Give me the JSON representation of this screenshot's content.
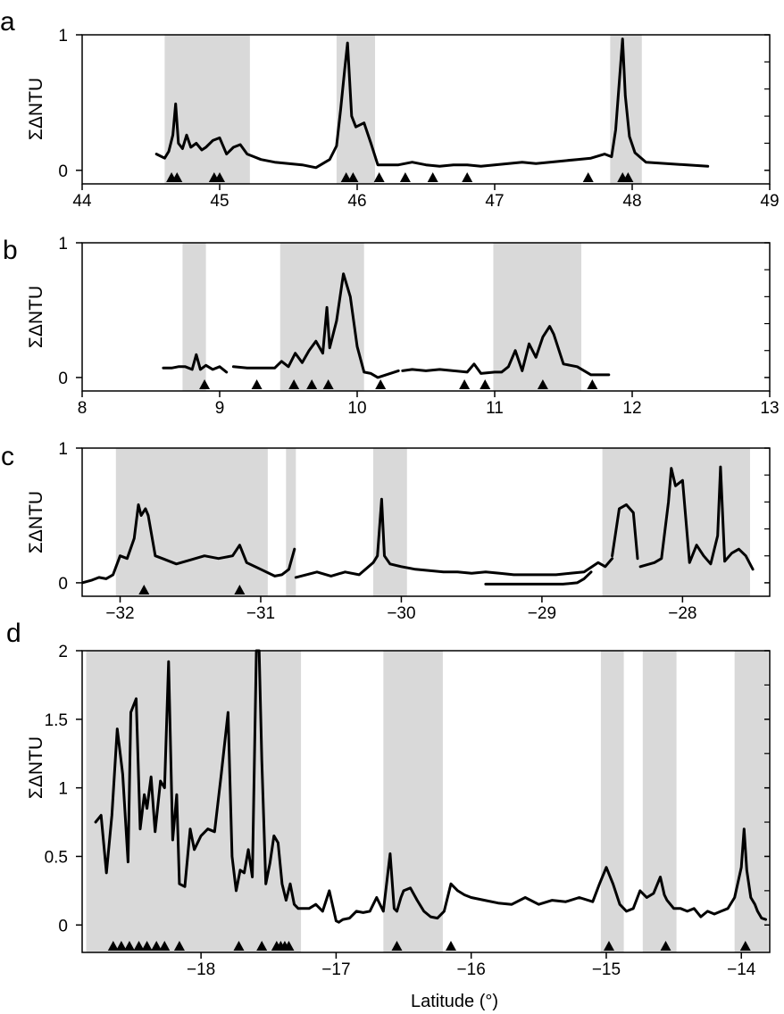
{
  "figure": {
    "xlabel": "Latitude (°)",
    "ylabel": "ΣΔNTU",
    "shade_color": "#d9d9d9",
    "line_color": "#000000"
  },
  "chart_data": [
    {
      "panel_label": "a",
      "type": "line",
      "xlim": [
        44,
        49
      ],
      "ylim": [
        -0.1,
        1
      ],
      "xticks": [
        44,
        45,
        46,
        47,
        48,
        49
      ],
      "yticks": [
        0,
        1
      ],
      "xtick_labels": [
        "44",
        "45",
        "46",
        "47",
        "48",
        "49"
      ],
      "ytick_labels": [
        "0",
        "1"
      ],
      "shaded_regions": [
        [
          44.6,
          45.22
        ],
        [
          45.85,
          46.13
        ],
        [
          47.84,
          48.07
        ]
      ],
      "series": [
        {
          "x": [
            44.54,
            44.6,
            44.63,
            44.66,
            44.68,
            44.7,
            44.73,
            44.76,
            44.79,
            44.83,
            44.87,
            44.9,
            44.95,
            45.0,
            45.05,
            45.1,
            45.15,
            45.2,
            45.25,
            45.3,
            45.4,
            45.5,
            45.6,
            45.7,
            45.8,
            45.85,
            45.88,
            45.91,
            45.93,
            45.96,
            45.99,
            46.05,
            46.1,
            46.15,
            46.3,
            46.4,
            46.5,
            46.6,
            46.7,
            46.8,
            46.9,
            47.0,
            47.1,
            47.2,
            47.3,
            47.4,
            47.5,
            47.6,
            47.7,
            47.8,
            47.85,
            47.88,
            47.91,
            47.93,
            47.95,
            47.98,
            48.02,
            48.1,
            48.55
          ],
          "y": [
            0.12,
            0.09,
            0.14,
            0.26,
            0.49,
            0.2,
            0.16,
            0.26,
            0.17,
            0.2,
            0.15,
            0.17,
            0.22,
            0.24,
            0.12,
            0.17,
            0.19,
            0.12,
            0.1,
            0.08,
            0.06,
            0.05,
            0.04,
            0.02,
            0.08,
            0.18,
            0.45,
            0.75,
            0.94,
            0.4,
            0.32,
            0.35,
            0.2,
            0.04,
            0.04,
            0.06,
            0.04,
            0.03,
            0.04,
            0.04,
            0.03,
            0.04,
            0.05,
            0.06,
            0.05,
            0.06,
            0.07,
            0.08,
            0.09,
            0.12,
            0.1,
            0.3,
            0.7,
            0.97,
            0.55,
            0.25,
            0.13,
            0.06,
            0.03
          ]
        }
      ],
      "triangles": [
        44.65,
        44.69,
        44.96,
        45.0,
        45.92,
        45.97,
        46.16,
        46.35,
        46.55,
        46.8,
        47.68,
        47.93,
        47.97
      ]
    },
    {
      "panel_label": "b",
      "type": "line",
      "xlim": [
        8,
        13
      ],
      "ylim": [
        -0.1,
        1
      ],
      "xticks": [
        8,
        9,
        10,
        11,
        12,
        13
      ],
      "yticks": [
        0,
        1
      ],
      "xtick_labels": [
        "8",
        "9",
        "10",
        "11",
        "12",
        "13"
      ],
      "ytick_labels": [
        "0",
        "1"
      ],
      "shaded_regions": [
        [
          8.73,
          8.9
        ],
        [
          9.44,
          10.05
        ],
        [
          10.99,
          11.63
        ]
      ],
      "series": [
        {
          "x": [
            8.59,
            8.65,
            8.7,
            8.75,
            8.8,
            8.83,
            8.86,
            8.9,
            8.95,
            9.0,
            9.05
          ],
          "y": [
            0.07,
            0.07,
            0.08,
            0.08,
            0.06,
            0.17,
            0.06,
            0.09,
            0.06,
            0.08,
            0.04
          ]
        },
        {
          "x": [
            9.1,
            9.2,
            9.3,
            9.4,
            9.45,
            9.5,
            9.55,
            9.6,
            9.65,
            9.7,
            9.75,
            9.78,
            9.8,
            9.85,
            9.9,
            9.95,
            10.0,
            10.05,
            10.1,
            10.15,
            10.3
          ],
          "y": [
            0.08,
            0.07,
            0.07,
            0.07,
            0.12,
            0.08,
            0.18,
            0.11,
            0.2,
            0.27,
            0.18,
            0.52,
            0.22,
            0.42,
            0.77,
            0.6,
            0.23,
            0.04,
            0.03,
            0.0,
            0.05
          ]
        },
        {
          "x": [
            10.33,
            10.4,
            10.5,
            10.6,
            10.7,
            10.8,
            10.85,
            10.9,
            11.0,
            11.05,
            11.1,
            11.15,
            11.2,
            11.25,
            11.3,
            11.35,
            11.4,
            11.43,
            11.5,
            11.55,
            11.6,
            11.7,
            11.83
          ],
          "y": [
            0.05,
            0.06,
            0.05,
            0.06,
            0.05,
            0.04,
            0.1,
            0.03,
            0.04,
            0.04,
            0.08,
            0.2,
            0.05,
            0.25,
            0.15,
            0.3,
            0.38,
            0.32,
            0.1,
            0.09,
            0.08,
            0.02,
            0.02
          ]
        }
      ],
      "triangles": [
        8.89,
        9.27,
        9.54,
        9.67,
        9.79,
        10.17,
        10.78,
        10.93,
        11.35,
        11.71
      ]
    },
    {
      "panel_label": "c",
      "type": "line",
      "xlim": [
        -32.27,
        -27.38
      ],
      "ylim": [
        -0.1,
        1
      ],
      "xticks": [
        -32,
        -31,
        -30,
        -29,
        -28
      ],
      "yticks": [
        0,
        1
      ],
      "xtick_labels": [
        "−32",
        "−31",
        "−30",
        "−29",
        "−28"
      ],
      "ytick_labels": [
        "0",
        "1"
      ],
      "shaded_regions": [
        [
          -32.03,
          -30.95
        ],
        [
          -30.82,
          -30.75
        ],
        [
          -30.2,
          -29.96
        ],
        [
          -28.57,
          -27.52
        ]
      ],
      "series": [
        {
          "x": [
            -32.27,
            -32.2,
            -32.15,
            -32.1,
            -32.05,
            -32.0,
            -31.95,
            -31.9,
            -31.87,
            -31.85,
            -31.82,
            -31.8,
            -31.75,
            -31.7,
            -31.6,
            -31.5,
            -31.4,
            -31.3,
            -31.2,
            -31.15,
            -31.1,
            -31.0,
            -30.9,
            -30.85,
            -30.8,
            -30.76
          ],
          "y": [
            0.0,
            0.02,
            0.04,
            0.03,
            0.06,
            0.2,
            0.18,
            0.33,
            0.58,
            0.5,
            0.55,
            0.5,
            0.2,
            0.18,
            0.14,
            0.17,
            0.2,
            0.18,
            0.2,
            0.28,
            0.15,
            0.1,
            0.05,
            0.06,
            0.1,
            0.25
          ]
        },
        {
          "x": [
            -30.75,
            -30.6,
            -30.5,
            -30.4,
            -30.3,
            -30.2,
            -30.17,
            -30.14,
            -30.12,
            -30.08,
            -30.0,
            -29.9,
            -29.8,
            -29.7,
            -29.6,
            -29.5,
            -29.4,
            -29.3,
            -29.2,
            -29.1,
            -29.0,
            -28.9,
            -28.8,
            -28.7,
            -28.6,
            -28.55,
            -28.5
          ],
          "y": [
            0.04,
            0.08,
            0.05,
            0.08,
            0.06,
            0.15,
            0.2,
            0.62,
            0.2,
            0.14,
            0.12,
            0.1,
            0.09,
            0.08,
            0.08,
            0.07,
            0.08,
            0.07,
            0.06,
            0.06,
            0.06,
            0.06,
            0.07,
            0.08,
            0.15,
            0.12,
            0.18
          ]
        },
        {
          "x": [
            -29.4,
            -29.2,
            -29.0,
            -28.85,
            -28.75,
            -28.7,
            -28.65
          ],
          "y": [
            -0.01,
            -0.01,
            -0.01,
            -0.01,
            0.0,
            0.03,
            0.08
          ]
        },
        {
          "x": [
            -28.5,
            -28.45,
            -28.4,
            -28.35,
            -28.32
          ],
          "y": [
            0.2,
            0.55,
            0.58,
            0.52,
            0.18
          ]
        },
        {
          "x": [
            -28.3,
            -28.2,
            -28.15,
            -28.1,
            -28.08,
            -28.05,
            -28.0,
            -27.95,
            -27.9,
            -27.85,
            -27.8,
            -27.75,
            -27.73,
            -27.7,
            -27.65,
            -27.6,
            -27.55,
            -27.5
          ],
          "y": [
            0.12,
            0.15,
            0.18,
            0.6,
            0.85,
            0.72,
            0.76,
            0.15,
            0.28,
            0.2,
            0.14,
            0.35,
            0.86,
            0.16,
            0.22,
            0.25,
            0.2,
            0.1
          ]
        }
      ],
      "triangles": [
        -31.83,
        -31.15
      ]
    },
    {
      "panel_label": "d",
      "type": "line",
      "xlim": [
        -18.88,
        -13.79
      ],
      "ylim": [
        -0.2,
        2
      ],
      "xticks": [
        -18,
        -17,
        -16,
        -15,
        -14
      ],
      "yticks": [
        0,
        0.5,
        1,
        1.5,
        2
      ],
      "xtick_labels": [
        "−18",
        "−17",
        "−16",
        "−15",
        "−14"
      ],
      "ytick_labels": [
        "0",
        "0.5",
        "1",
        "1.5",
        "2"
      ],
      "shaded_regions": [
        [
          -18.85,
          -17.26
        ],
        [
          -16.65,
          -16.21
        ],
        [
          -15.04,
          -14.87
        ],
        [
          -14.73,
          -14.48
        ],
        [
          -14.05,
          -13.8
        ]
      ],
      "series": [
        {
          "x": [
            -18.78,
            -18.74,
            -18.7,
            -18.66,
            -18.62,
            -18.58,
            -18.54,
            -18.52,
            -18.48,
            -18.45,
            -18.42,
            -18.4,
            -18.37,
            -18.34,
            -18.3,
            -18.27,
            -18.24,
            -18.21,
            -18.18,
            -18.16,
            -18.12,
            -18.08,
            -18.05,
            -18.0,
            -17.95,
            -17.9,
            -17.85,
            -17.8,
            -17.77,
            -17.74,
            -17.71,
            -17.68,
            -17.65,
            -17.62,
            -17.59,
            -17.57,
            -17.55,
            -17.52,
            -17.49,
            -17.46,
            -17.43,
            -17.4,
            -17.37,
            -17.34,
            -17.31,
            -17.28,
            -17.25,
            -17.2,
            -17.15,
            -17.1,
            -17.05,
            -17.0,
            -16.98,
            -16.95,
            -16.9,
            -16.85,
            -16.8,
            -16.75,
            -16.7,
            -16.65,
            -16.6,
            -16.57,
            -16.55,
            -16.52,
            -16.5,
            -16.45,
            -16.4,
            -16.35,
            -16.3,
            -16.25,
            -16.2,
            -16.15,
            -16.1,
            -16.05,
            -16.0,
            -15.9,
            -15.8,
            -15.7,
            -15.6,
            -15.5,
            -15.4,
            -15.3,
            -15.2,
            -15.1,
            -15.05,
            -15.0,
            -14.95,
            -14.9,
            -14.85,
            -14.8,
            -14.75,
            -14.7,
            -14.65,
            -14.6,
            -14.57,
            -14.55,
            -14.5,
            -14.45,
            -14.4,
            -14.35,
            -14.3,
            -14.25,
            -14.2,
            -14.15,
            -14.1,
            -14.05,
            -14.0,
            -13.98,
            -13.96,
            -13.93,
            -13.9,
            -13.88,
            -13.85,
            -13.82
          ],
          "y": [
            0.75,
            0.8,
            0.38,
            0.8,
            1.43,
            1.1,
            0.46,
            1.55,
            1.65,
            0.7,
            0.95,
            0.85,
            1.08,
            0.68,
            1.05,
            1.0,
            1.92,
            0.62,
            0.95,
            0.3,
            0.28,
            0.7,
            0.55,
            0.65,
            0.7,
            0.68,
            1.1,
            1.55,
            0.5,
            0.25,
            0.4,
            0.38,
            0.55,
            0.35,
            2.0,
            2.0,
            1.2,
            0.3,
            0.45,
            0.65,
            0.6,
            0.3,
            0.18,
            0.3,
            0.15,
            0.12,
            0.12,
            0.12,
            0.15,
            0.1,
            0.25,
            0.03,
            0.02,
            0.04,
            0.05,
            0.1,
            0.09,
            0.1,
            0.2,
            0.1,
            0.52,
            0.12,
            0.1,
            0.2,
            0.25,
            0.27,
            0.18,
            0.1,
            0.06,
            0.05,
            0.1,
            0.3,
            0.25,
            0.22,
            0.2,
            0.18,
            0.16,
            0.15,
            0.2,
            0.15,
            0.18,
            0.17,
            0.2,
            0.17,
            0.3,
            0.42,
            0.3,
            0.15,
            0.1,
            0.12,
            0.25,
            0.2,
            0.23,
            0.35,
            0.22,
            0.18,
            0.12,
            0.12,
            0.1,
            0.12,
            0.06,
            0.1,
            0.08,
            0.1,
            0.12,
            0.2,
            0.42,
            0.7,
            0.4,
            0.2,
            0.15,
            0.1,
            0.05,
            0.04
          ]
        }
      ],
      "triangles": [
        -18.65,
        -18.59,
        -18.53,
        -18.46,
        -18.4,
        -18.33,
        -18.27,
        -18.16,
        -17.72,
        -17.55,
        -17.44,
        -17.41,
        -17.38,
        -17.35,
        -16.55,
        -16.15,
        -14.98,
        -14.56,
        -13.97
      ]
    }
  ]
}
